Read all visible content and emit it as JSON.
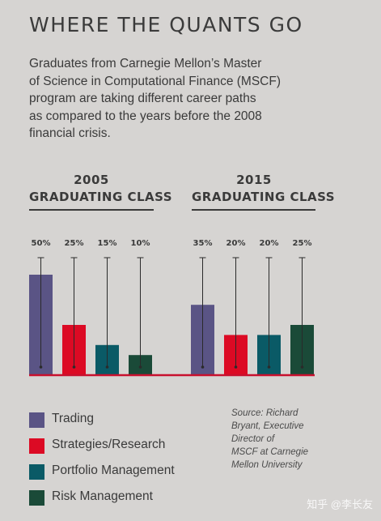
{
  "title": "WHERE THE QUANTS GO",
  "intro": [
    "Graduates from Carnegie Mellon’s Master",
    "of Science in Computational Finance (MSCF)",
    "program are taking different career paths",
    "as compared to the years before the 2008",
    "financial crisis."
  ],
  "groups": [
    {
      "line1": "2005",
      "line2": "GRADUATING CLASS"
    },
    {
      "line1": "2015",
      "line2": "GRADUATING CLASS"
    }
  ],
  "source": [
    "Source: Richard",
    "Bryant, Executive",
    "Director of",
    "MSCF at Carnegie",
    "Mellon University"
  ],
  "watermark": "知乎 @李长友",
  "chart_data": {
    "type": "bar",
    "categories": [
      "2005 GRADUATING CLASS",
      "2015 GRADUATING CLASS"
    ],
    "series": [
      {
        "name": "Trading",
        "color": "#5a5485",
        "values": [
          50,
          35
        ],
        "labels": [
          "50%",
          "35%"
        ]
      },
      {
        "name": "Strategies/Research",
        "color": "#dc0a24",
        "values": [
          25,
          20
        ],
        "labels": [
          "25%",
          "20%"
        ]
      },
      {
        "name": "Portfolio Management",
        "color": "#0a5a66",
        "values": [
          15,
          20
        ],
        "labels": [
          "15%",
          "20%"
        ]
      },
      {
        "name": "Risk Management",
        "color": "#1a4a38",
        "values": [
          10,
          25
        ],
        "labels": [
          "10%",
          "25%"
        ]
      }
    ],
    "ylim": [
      0,
      60
    ],
    "baseline_color": "#c8102e"
  }
}
